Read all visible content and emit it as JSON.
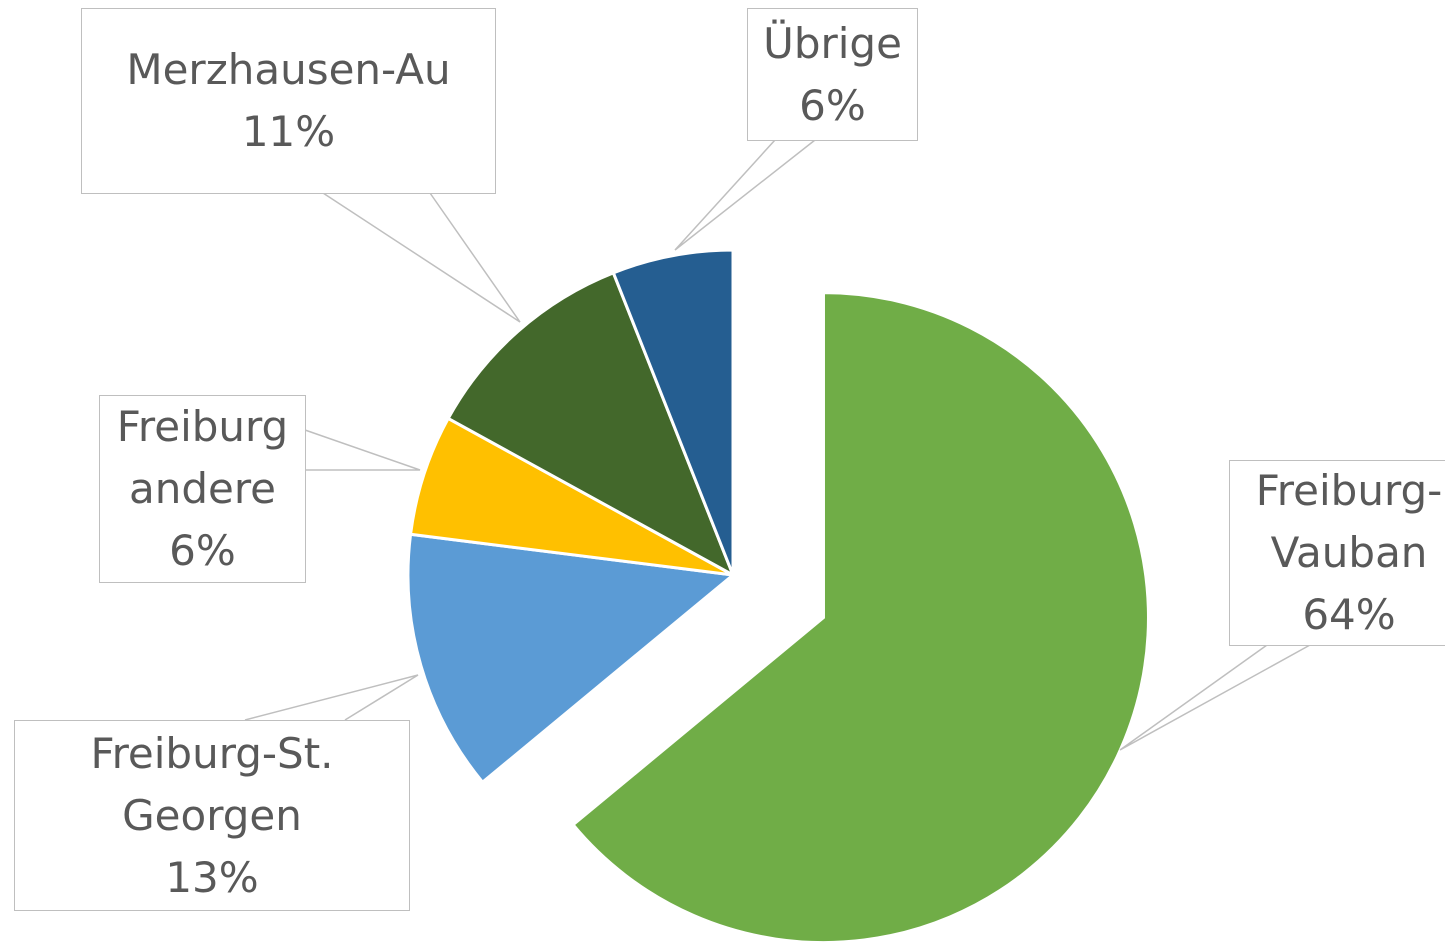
{
  "chart_data": {
    "type": "pie",
    "categories": [
      "Freiburg-Vauban",
      "Freiburg-St. Georgen",
      "Freiburg andere",
      "Merzhausen-Au",
      "Übrige"
    ],
    "values": [
      64,
      13,
      6,
      11,
      6
    ],
    "value_labels": [
      "64%",
      "13%",
      "6%",
      "11%",
      "6%"
    ],
    "colors": [
      "#70ad47",
      "#5b9bd5",
      "#ffc000",
      "#43682b",
      "#255e91"
    ]
  }
}
